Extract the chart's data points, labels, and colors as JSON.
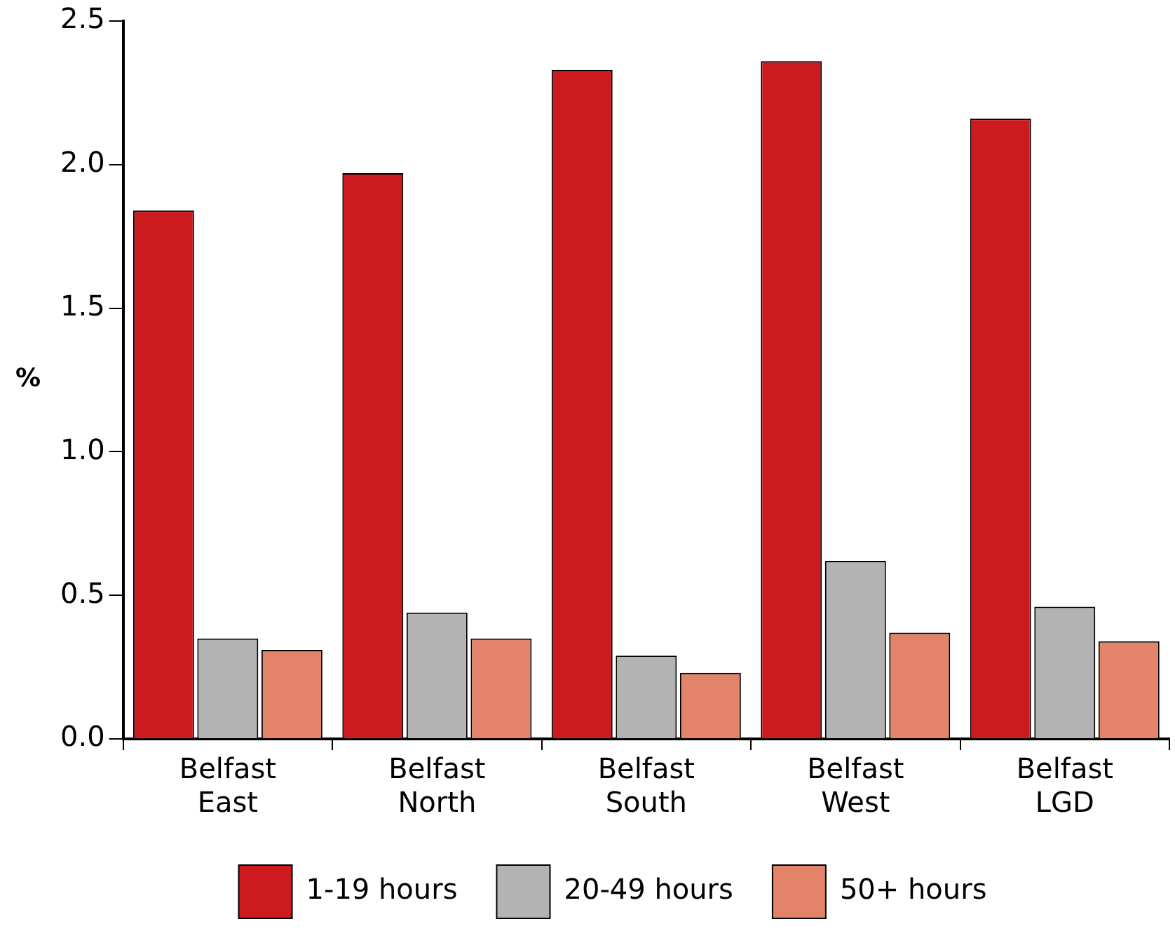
{
  "chart_data": {
    "type": "bar",
    "ylabel": "%",
    "categories": [
      "Belfast East",
      "Belfast North",
      "Belfast South",
      "Belfast West",
      "Belfast LGD"
    ],
    "series": [
      {
        "name": "1-19 hours",
        "color": "#cc1a1e",
        "values": [
          1.84,
          1.97,
          2.33,
          2.36,
          2.16
        ]
      },
      {
        "name": "20-49 hours",
        "color": "#b3b3b3",
        "values": [
          0.35,
          0.44,
          0.29,
          0.62,
          0.46
        ]
      },
      {
        "name": "50+ hours",
        "color": "#e3836a",
        "values": [
          0.31,
          0.35,
          0.23,
          0.37,
          0.34
        ]
      }
    ],
    "ylim": [
      0,
      2.5
    ],
    "yticks": [
      {
        "value": 0,
        "label": "0.0"
      },
      {
        "value": 0.5,
        "label": "0.5"
      },
      {
        "value": 1,
        "label": "1.0"
      },
      {
        "value": 1.5,
        "label": "1.5"
      },
      {
        "value": 2,
        "label": "2.0"
      },
      {
        "value": 2.5,
        "label": "2.5"
      }
    ],
    "grid": false,
    "legend": "bottom"
  }
}
